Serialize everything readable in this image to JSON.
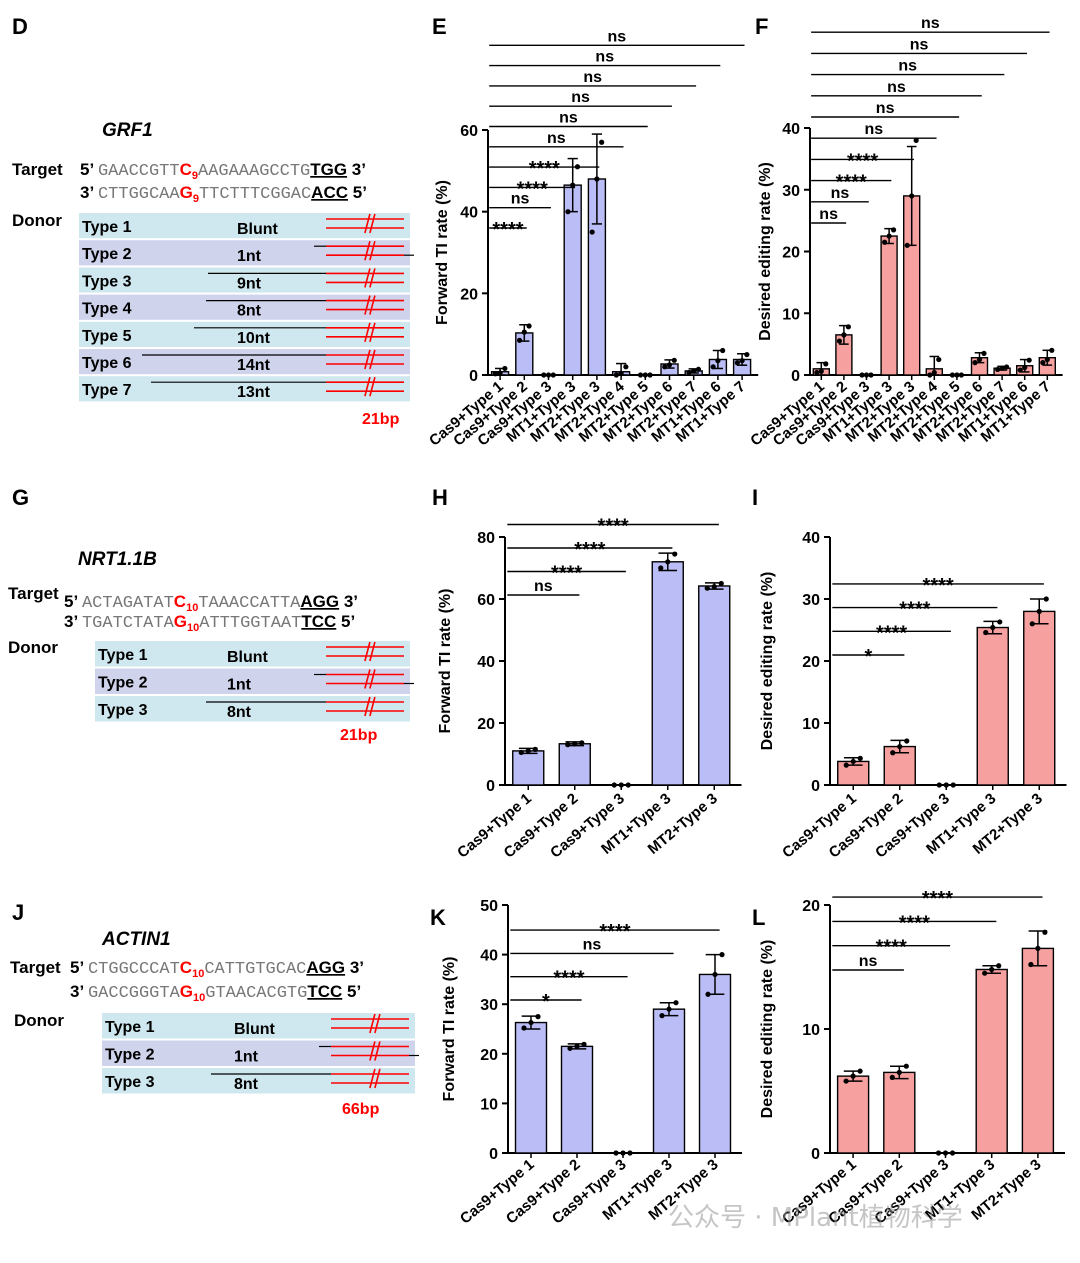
{
  "colors": {
    "blue": "#bbbdf6",
    "red": "#f6a0a0",
    "donor_a": "#cfe8ef",
    "donor_b": "#cfd3ec",
    "accent": "#ff0000"
  },
  "genes": [
    {
      "panel": "D",
      "name": "GRF1",
      "target_label": "Target",
      "donor_label": "Donor",
      "strand1": {
        "p5": "5’",
        "pre": "GAACCGTT",
        "red": "C",
        "sub": "9",
        "post": "AAGAAAGCCTG",
        "pam": "TGG",
        "p3": "3’"
      },
      "strand2": {
        "p5": "3’",
        "pre": "CTTGGCAA",
        "red": "G",
        "sub": "9",
        "post": "TTCTTTCGGAC",
        "pam": "ACC",
        "p3": "5’"
      },
      "types": [
        {
          "label": "Type 1",
          "note": "Blunt"
        },
        {
          "label": "Type 2",
          "note": "1nt"
        },
        {
          "label": "Type 3",
          "note": "9nt"
        },
        {
          "label": "Type 4",
          "note": "8nt"
        },
        {
          "label": "Type 5",
          "note": "10nt"
        },
        {
          "label": "Type 6",
          "note": "14nt"
        },
        {
          "label": "Type 7",
          "note": "13nt"
        }
      ],
      "length": "21bp"
    },
    {
      "panel": "G",
      "name": "NRT1.1B",
      "target_label": "Target",
      "donor_label": "Donor",
      "strand1": {
        "p5": "5’",
        "pre": "ACTAGATAT",
        "red": "C",
        "sub": "10",
        "post": "TAAACCATTA",
        "pam": "AGG",
        "p3": "3’"
      },
      "strand2": {
        "p5": "3’",
        "pre": "TGATCTATA",
        "red": "G",
        "sub": "10",
        "post": "ATTTGGTAAT",
        "pam": "TCC",
        "p3": "5’"
      },
      "types": [
        {
          "label": "Type 1",
          "note": "Blunt"
        },
        {
          "label": "Type 2",
          "note": "1nt"
        },
        {
          "label": "Type 3",
          "note": "8nt"
        }
      ],
      "length": "21bp"
    },
    {
      "panel": "J",
      "name": "ACTIN1",
      "target_label": "Target",
      "donor_label": "Donor",
      "strand1": {
        "p5": "5’",
        "pre": "CTGGCCCAT",
        "red": "C",
        "sub": "10",
        "post": "CATTGTGCAC",
        "pam": "AGG",
        "p3": "3’"
      },
      "strand2": {
        "p5": "3’",
        "pre": "GACCGGGTA",
        "red": "G",
        "sub": "10",
        "post": "GTAACACGTG",
        "pam": "TCC",
        "p3": "5’"
      },
      "types": [
        {
          "label": "Type 1",
          "note": "Blunt"
        },
        {
          "label": "Type 2",
          "note": "1nt"
        },
        {
          "label": "Type 3",
          "note": "8nt"
        }
      ],
      "length": "66bp"
    }
  ],
  "chart_data": [
    {
      "panel": "E",
      "type": "bar",
      "color": "blue",
      "ylabel": "Forward TI rate (%)",
      "ylim": [
        0,
        60
      ],
      "yticks": [
        0,
        20,
        40,
        60
      ],
      "categories": [
        "Cas9+Type 1",
        "Cas9+Type 2",
        "Cas9+Type 3",
        "MT1+Type 3",
        "MT2+Type 3",
        "MT2+Type 4",
        "MT2+Type 5",
        "MT2+Type 6",
        "MT2+Type 7",
        "MT1+Type 6",
        "MT1+Type 7"
      ],
      "values": [
        0.8,
        10.3,
        0,
        46.5,
        48,
        0.8,
        0,
        2.7,
        1.0,
        3.8,
        3.8
      ],
      "errors": [
        0.8,
        2,
        0,
        6.5,
        11,
        2,
        0,
        1,
        0.5,
        2.2,
        1.4
      ],
      "points": [
        [
          0.3,
          0.5,
          1.6
        ],
        [
          8.5,
          10.5,
          12
        ],
        [
          0,
          0,
          0
        ],
        [
          40,
          46.5,
          51
        ],
        [
          35,
          48,
          57
        ],
        [
          0,
          0.4,
          2
        ],
        [
          0,
          0,
          0
        ],
        [
          2,
          2.5,
          3.6
        ],
        [
          0.6,
          1,
          1.4
        ],
        [
          2,
          3.5,
          6
        ],
        [
          3,
          3.5,
          5
        ]
      ],
      "comparisons": [
        {
          "from": 0,
          "to": 1,
          "label": "****"
        },
        {
          "from": 0,
          "to": 2,
          "label": "ns"
        },
        {
          "from": 0,
          "to": 3,
          "label": "****"
        },
        {
          "from": 0,
          "to": 4,
          "label": "****"
        },
        {
          "from": 0,
          "to": 5,
          "label": "ns"
        },
        {
          "from": 0,
          "to": 6,
          "label": "ns"
        },
        {
          "from": 0,
          "to": 7,
          "label": "ns"
        },
        {
          "from": 0,
          "to": 8,
          "label": "ns"
        },
        {
          "from": 0,
          "to": 9,
          "label": "ns"
        },
        {
          "from": 0,
          "to": 10,
          "label": "ns"
        }
      ]
    },
    {
      "panel": "F",
      "type": "bar",
      "color": "red",
      "ylabel": "Desired editing rate (%)",
      "ylim": [
        0,
        40
      ],
      "yticks": [
        0,
        10,
        20,
        30,
        40
      ],
      "categories": [
        "Cas9+Type 1",
        "Cas9+Type 2",
        "Cas9+Type 3",
        "MT1+Type 3",
        "MT2+Type 3",
        "MT2+Type 4",
        "MT2+Type 5",
        "MT2+Type 6",
        "MT2+Type 7",
        "MT1+Type 6",
        "MT1+Type 7"
      ],
      "values": [
        1.0,
        6.5,
        0,
        22.5,
        29,
        1.0,
        0,
        2.8,
        1.1,
        1.5,
        2.8
      ],
      "errors": [
        1.0,
        1.5,
        0,
        1.2,
        8,
        2,
        0,
        0.8,
        0.3,
        1,
        1.2
      ],
      "points": [
        [
          0.4,
          0.6,
          1.8
        ],
        [
          5.5,
          6.5,
          7.8
        ],
        [
          0,
          0,
          0
        ],
        [
          21.5,
          22.5,
          23.5
        ],
        [
          21,
          29,
          38
        ],
        [
          0,
          0.4,
          2.5
        ],
        [
          0,
          0,
          0
        ],
        [
          2,
          2.5,
          3.5
        ],
        [
          0.9,
          1.1,
          1.3
        ],
        [
          0.8,
          1.2,
          2.4
        ],
        [
          2,
          2.5,
          4
        ]
      ],
      "comparisons": [
        {
          "from": 0,
          "to": 1,
          "label": "ns"
        },
        {
          "from": 0,
          "to": 2,
          "label": "ns"
        },
        {
          "from": 0,
          "to": 3,
          "label": "****"
        },
        {
          "from": 0,
          "to": 4,
          "label": "****"
        },
        {
          "from": 0,
          "to": 5,
          "label": "ns"
        },
        {
          "from": 0,
          "to": 6,
          "label": "ns"
        },
        {
          "from": 0,
          "to": 7,
          "label": "ns"
        },
        {
          "from": 0,
          "to": 8,
          "label": "ns"
        },
        {
          "from": 0,
          "to": 9,
          "label": "ns"
        },
        {
          "from": 0,
          "to": 10,
          "label": "ns"
        }
      ]
    },
    {
      "panel": "H",
      "type": "bar",
      "color": "blue",
      "ylabel": "Forward TI rate (%)",
      "ylim": [
        0,
        80
      ],
      "yticks": [
        0,
        20,
        40,
        60,
        80
      ],
      "categories": [
        "Cas9+Type 1",
        "Cas9+Type 2",
        "Cas9+Type 3",
        "MT1+Type 3",
        "MT2+Type 3"
      ],
      "values": [
        11,
        13.3,
        0,
        72,
        64.2
      ],
      "errors": [
        0.8,
        0.6,
        0,
        2.8,
        1
      ],
      "points": [
        [
          10.5,
          11,
          11.5
        ],
        [
          13,
          13.3,
          13.6
        ],
        [
          0,
          0,
          0
        ],
        [
          70,
          72,
          74.5
        ],
        [
          63.5,
          64,
          65
        ]
      ],
      "comparisons": [
        {
          "from": 0,
          "to": 1,
          "label": "ns"
        },
        {
          "from": 0,
          "to": 2,
          "label": "****"
        },
        {
          "from": 0,
          "to": 3,
          "label": "****"
        },
        {
          "from": 0,
          "to": 4,
          "label": "****"
        }
      ]
    },
    {
      "panel": "I",
      "type": "bar",
      "color": "red",
      "ylabel": "Desired editing rate (%)",
      "ylim": [
        0,
        40
      ],
      "yticks": [
        0,
        10,
        20,
        30,
        40
      ],
      "categories": [
        "Cas9+Type 1",
        "Cas9+Type 2",
        "Cas9+Type 3",
        "MT1+Type 3",
        "MT2+Type 3"
      ],
      "values": [
        3.8,
        6.2,
        0,
        25.4,
        28
      ],
      "errors": [
        0.6,
        1,
        0,
        1,
        2
      ],
      "points": [
        [
          3.2,
          3.8,
          4.3
        ],
        [
          5.2,
          6.2,
          7.1
        ],
        [
          0,
          0,
          0
        ],
        [
          24.6,
          25.4,
          26.3
        ],
        [
          26,
          28,
          30
        ]
      ],
      "comparisons": [
        {
          "from": 0,
          "to": 1,
          "label": "*"
        },
        {
          "from": 0,
          "to": 2,
          "label": "****"
        },
        {
          "from": 0,
          "to": 3,
          "label": "****"
        },
        {
          "from": 0,
          "to": 4,
          "label": "****"
        }
      ]
    },
    {
      "panel": "K",
      "type": "bar",
      "color": "blue",
      "ylabel": "Forward TI rate (%)",
      "ylim": [
        0,
        50
      ],
      "yticks": [
        0,
        10,
        20,
        30,
        40,
        50
      ],
      "categories": [
        "Cas9+Type 1",
        "Cas9+Type 2",
        "Cas9+Type 3",
        "MT1+Type 3",
        "MT2+Type 3"
      ],
      "values": [
        26.3,
        21.5,
        0,
        29,
        36
      ],
      "errors": [
        1.3,
        0.5,
        0,
        1.3,
        4
      ],
      "points": [
        [
          25.2,
          26.3,
          27.5
        ],
        [
          21.1,
          21.5,
          21.9
        ],
        [
          0,
          0,
          0
        ],
        [
          27.7,
          29,
          30.3
        ],
        [
          32,
          36,
          40
        ]
      ],
      "comparisons": [
        {
          "from": 0,
          "to": 1,
          "label": "*"
        },
        {
          "from": 0,
          "to": 2,
          "label": "****"
        },
        {
          "from": 0,
          "to": 3,
          "label": "ns"
        },
        {
          "from": 0,
          "to": 4,
          "label": "****"
        }
      ]
    },
    {
      "panel": "L",
      "type": "bar",
      "color": "red",
      "ylabel": "Desired editing rate (%)",
      "ylim": [
        0,
        20
      ],
      "yticks": [
        0,
        10,
        20
      ],
      "categories": [
        "Cas9+Type 1",
        "Cas9+Type 2",
        "Cas9+Type 3",
        "MT1+Type 3",
        "MT2+Type 3"
      ],
      "values": [
        6.2,
        6.5,
        0,
        14.8,
        16.5
      ],
      "errors": [
        0.4,
        0.5,
        0,
        0.3,
        1.4
      ],
      "points": [
        [
          5.8,
          6.2,
          6.6
        ],
        [
          6.1,
          6.5,
          7
        ],
        [
          0,
          0,
          0
        ],
        [
          14.5,
          14.8,
          15.1
        ],
        [
          15.2,
          16.5,
          17.8
        ]
      ],
      "comparisons": [
        {
          "from": 0,
          "to": 1,
          "label": "ns"
        },
        {
          "from": 0,
          "to": 2,
          "label": "****"
        },
        {
          "from": 0,
          "to": 3,
          "label": "****"
        },
        {
          "from": 0,
          "to": 4,
          "label": "****"
        }
      ]
    }
  ],
  "watermark": "公众号 · MPlant植物科学"
}
